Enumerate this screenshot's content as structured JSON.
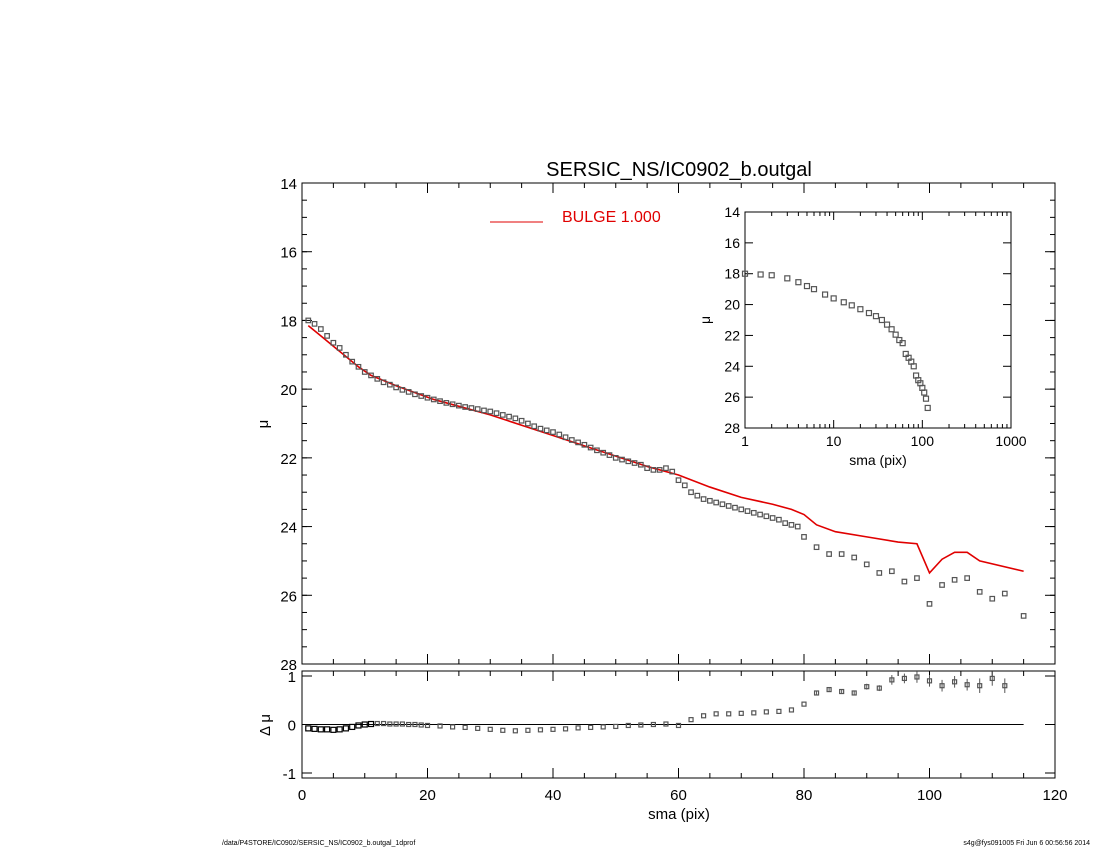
{
  "chart_data": [
    {
      "panel": "main",
      "type": "scatter",
      "title": "SERSIC_NS/IC0902_b.outgal",
      "xlabel": "",
      "ylabel": "μ",
      "xlim": [
        0,
        120
      ],
      "ylim": [
        28,
        14
      ],
      "y_inverted": true,
      "yticks": [
        "14",
        "16",
        "18",
        "20",
        "22",
        "24",
        "26",
        "28"
      ],
      "legend": {
        "placement": "top",
        "label": "BULGE  1.000",
        "color": "#e00000"
      },
      "series": [
        {
          "kind": "points",
          "color": "#555555",
          "x": [
            1,
            2,
            3,
            4,
            5,
            6,
            7,
            8,
            9,
            10,
            11,
            12,
            13,
            14,
            15,
            16,
            17,
            18,
            19,
            20,
            21,
            22,
            23,
            24,
            25,
            26,
            27,
            28,
            29,
            30,
            31,
            32,
            33,
            34,
            35,
            36,
            37,
            38,
            39,
            40,
            41,
            42,
            43,
            44,
            45,
            46,
            47,
            48,
            49,
            50,
            51,
            52,
            53,
            54,
            55,
            56,
            57,
            58,
            59,
            60,
            61,
            62,
            63,
            64,
            65,
            66,
            67,
            68,
            69,
            70,
            71,
            72,
            73,
            74,
            75,
            76,
            77,
            78,
            79,
            80,
            82,
            84,
            86,
            88,
            90,
            92,
            94,
            96,
            98,
            100,
            102,
            104,
            106,
            108,
            110,
            112,
            115
          ],
          "y": [
            18.0,
            18.1,
            18.25,
            18.45,
            18.65,
            18.8,
            19.0,
            19.2,
            19.35,
            19.5,
            19.6,
            19.7,
            19.8,
            19.87,
            19.95,
            20.02,
            20.08,
            20.15,
            20.2,
            20.25,
            20.3,
            20.35,
            20.4,
            20.44,
            20.48,
            20.52,
            20.55,
            20.58,
            20.62,
            20.65,
            20.7,
            20.75,
            20.8,
            20.85,
            20.92,
            21.0,
            21.08,
            21.15,
            21.2,
            21.25,
            21.32,
            21.4,
            21.48,
            21.55,
            21.62,
            21.7,
            21.78,
            21.85,
            21.92,
            22.0,
            22.05,
            22.1,
            22.15,
            22.2,
            22.3,
            22.35,
            22.35,
            22.3,
            22.4,
            22.65,
            22.8,
            23.0,
            23.1,
            23.2,
            23.25,
            23.3,
            23.35,
            23.4,
            23.45,
            23.5,
            23.55,
            23.6,
            23.65,
            23.7,
            23.75,
            23.8,
            23.9,
            23.95,
            24.0,
            24.3,
            24.6,
            24.8,
            24.8,
            24.9,
            25.1,
            25.35,
            25.3,
            25.6,
            25.5,
            26.25,
            25.7,
            25.55,
            25.5,
            25.9,
            26.1,
            25.95,
            26.6
          ]
        },
        {
          "kind": "line",
          "name": "BULGE  1.000",
          "color": "#e00000",
          "x": [
            1,
            3,
            5,
            7,
            9,
            11,
            13,
            15,
            18,
            21,
            25,
            30,
            35,
            40,
            45,
            50,
            55,
            60,
            65,
            70,
            75,
            78,
            80,
            82,
            85,
            90,
            95,
            98,
            100,
            102,
            104,
            106,
            108,
            115
          ],
          "y": [
            18.15,
            18.45,
            18.75,
            19.05,
            19.35,
            19.6,
            19.75,
            19.9,
            20.1,
            20.3,
            20.5,
            20.75,
            21.05,
            21.35,
            21.65,
            21.95,
            22.25,
            22.5,
            22.85,
            23.15,
            23.35,
            23.5,
            23.65,
            23.95,
            24.15,
            24.3,
            24.45,
            24.5,
            25.35,
            24.95,
            24.75,
            24.75,
            25.0,
            25.3
          ]
        }
      ]
    },
    {
      "panel": "inset",
      "type": "scatter",
      "title": "",
      "xlabel": "sma (pix)",
      "ylabel": "μ",
      "xscale": "log",
      "xlim": [
        1,
        1000
      ],
      "ylim": [
        28,
        14
      ],
      "xticks": [
        "1",
        "10",
        "100",
        "1000"
      ],
      "yticks": [
        "14",
        "16",
        "18",
        "20",
        "22",
        "24",
        "26",
        "28"
      ],
      "series": [
        {
          "kind": "points",
          "color": "#555555",
          "x": [
            1,
            1.5,
            2,
            3,
            4,
            5,
            6,
            8,
            10,
            13,
            16,
            20,
            25,
            30,
            35,
            40,
            45,
            50,
            55,
            60,
            65,
            70,
            75,
            80,
            85,
            90,
            95,
            100,
            105,
            110,
            115
          ],
          "y": [
            18.0,
            18.05,
            18.1,
            18.3,
            18.55,
            18.8,
            19.0,
            19.35,
            19.6,
            19.85,
            20.05,
            20.3,
            20.55,
            20.75,
            21.0,
            21.3,
            21.6,
            21.95,
            22.3,
            22.5,
            23.2,
            23.45,
            23.7,
            24.0,
            24.6,
            24.9,
            25.1,
            25.4,
            25.7,
            26.1,
            26.7
          ]
        }
      ]
    },
    {
      "panel": "residual",
      "type": "scatter",
      "title": "",
      "xlabel": "sma (pix)",
      "ylabel": "Δ μ",
      "xlim": [
        0,
        120
      ],
      "ylim": [
        -1,
        1
      ],
      "xticks": [
        "0",
        "20",
        "40",
        "60",
        "80",
        "100",
        "120"
      ],
      "yticks": [
        "-1",
        "0",
        "1"
      ],
      "series": [
        {
          "kind": "points",
          "color": "#555555",
          "x": [
            1,
            2,
            3,
            4,
            5,
            6,
            7,
            8,
            9,
            10,
            11,
            12,
            13,
            14,
            15,
            16,
            17,
            18,
            19,
            20,
            22,
            24,
            26,
            28,
            30,
            32,
            34,
            36,
            38,
            40,
            42,
            44,
            46,
            48,
            50,
            52,
            54,
            56,
            58,
            60,
            62,
            64,
            66,
            68,
            70,
            72,
            74,
            76,
            78,
            80,
            82,
            84,
            86,
            88,
            90,
            92,
            94,
            96,
            98,
            100,
            102,
            104,
            106,
            108,
            110,
            112
          ],
          "y": [
            -0.08,
            -0.09,
            -0.1,
            -0.1,
            -0.11,
            -0.1,
            -0.08,
            -0.05,
            -0.02,
            0.0,
            0.01,
            0.02,
            0.02,
            0.01,
            0.01,
            0.01,
            0.0,
            0.0,
            -0.01,
            -0.02,
            -0.03,
            -0.05,
            -0.06,
            -0.08,
            -0.1,
            -0.12,
            -0.13,
            -0.12,
            -0.11,
            -0.1,
            -0.09,
            -0.07,
            -0.06,
            -0.05,
            -0.04,
            -0.02,
            -0.01,
            0.0,
            0.01,
            -0.02,
            0.1,
            0.18,
            0.22,
            0.22,
            0.23,
            0.24,
            0.26,
            0.27,
            0.3,
            0.42,
            0.65,
            0.72,
            0.68,
            0.65,
            0.78,
            0.75,
            0.92,
            0.95,
            0.98,
            0.9,
            0.8,
            0.88,
            0.82,
            0.8,
            0.95,
            0.8
          ],
          "err": [
            0,
            0,
            0,
            0,
            0,
            0,
            0,
            0,
            0,
            0,
            0,
            0,
            0,
            0,
            0,
            0,
            0,
            0,
            0,
            0,
            0,
            0,
            0,
            0,
            0,
            0,
            0,
            0,
            0,
            0,
            0,
            0,
            0,
            0,
            0,
            0,
            0,
            0,
            0,
            0,
            0,
            0,
            0,
            0,
            0,
            0,
            0,
            0,
            0,
            0,
            0.05,
            0.05,
            0.05,
            0.05,
            0.06,
            0.06,
            0.1,
            0.1,
            0.12,
            0.12,
            0.12,
            0.12,
            0.12,
            0.15,
            0.15,
            0.15
          ]
        }
      ]
    }
  ],
  "footer": {
    "left": "/data/P4STORE/IC0902/SERSIC_NS/IC0902_b.outgal_1dprof",
    "right": "s4g@fys091005  Fri Jun  6 00:56:56 2014"
  }
}
